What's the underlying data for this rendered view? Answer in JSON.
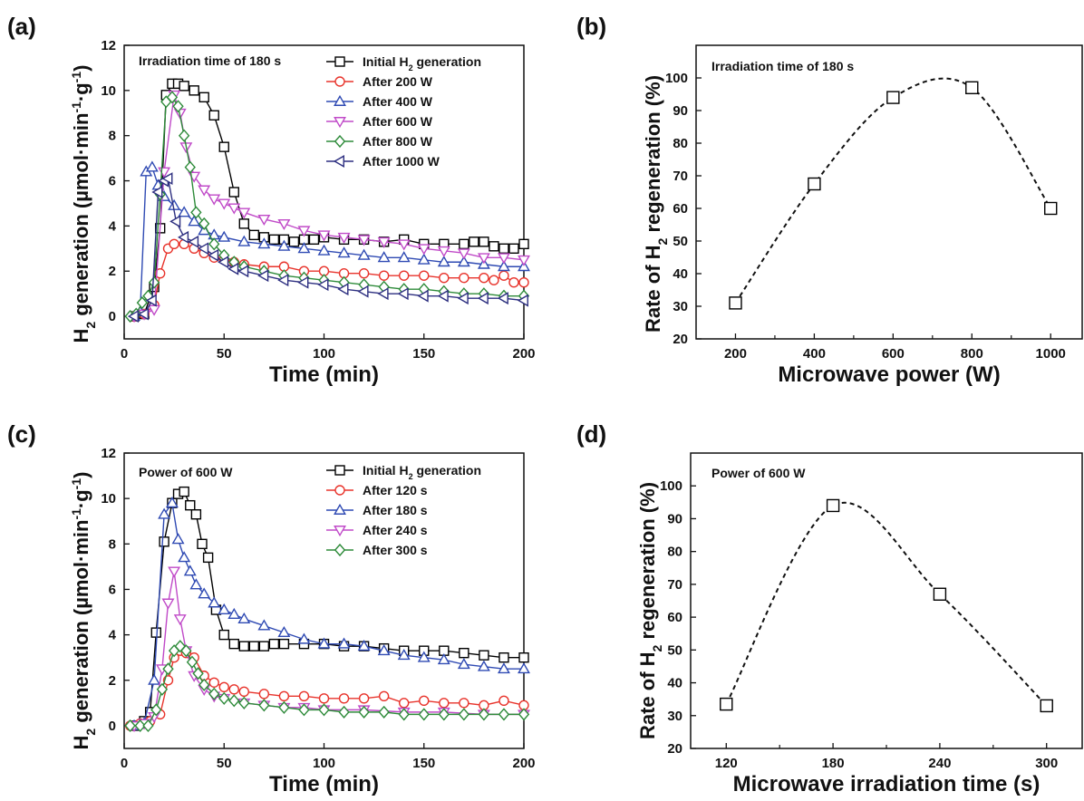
{
  "chart_data": [
    {
      "panel": "(a)",
      "type": "line",
      "annotation": "Irradiation time of 180 s",
      "xlabel": "Time (min)",
      "ylabel": [
        "H",
        "2",
        " generation  (µmol·min",
        "-1",
        "·g",
        "-1",
        ")"
      ],
      "xlim": [
        0,
        200
      ],
      "ylim": [
        -1,
        12
      ],
      "xticks": [
        "0",
        "50",
        "100",
        "150",
        "200"
      ],
      "yticks": [
        "0",
        "2",
        "4",
        "6",
        "8",
        "10",
        "12"
      ],
      "legend_position": "top-right",
      "series": [
        {
          "name": [
            "Initial H",
            "2",
            " generation"
          ],
          "color": "#000000",
          "marker": "square",
          "x": [
            5,
            10,
            15,
            18,
            21,
            24,
            27,
            30,
            35,
            40,
            45,
            50,
            55,
            60,
            65,
            70,
            75,
            80,
            85,
            90,
            95,
            100,
            110,
            120,
            130,
            140,
            150,
            160,
            170,
            175,
            180,
            185,
            190,
            195,
            200
          ],
          "y": [
            0,
            0.1,
            1.3,
            3.9,
            9.8,
            10.3,
            10.3,
            10.2,
            10,
            9.7,
            8.9,
            7.5,
            5.5,
            4.1,
            3.6,
            3.5,
            3.4,
            3.4,
            3.3,
            3.4,
            3.4,
            3.5,
            3.4,
            3.4,
            3.3,
            3.4,
            3.2,
            3.2,
            3.2,
            3.3,
            3.3,
            3.1,
            3,
            3,
            3.2
          ]
        },
        {
          "name": [
            "After 200 W"
          ],
          "color": "#e8332b",
          "marker": "circle",
          "x": [
            5,
            10,
            15,
            18,
            22,
            25,
            30,
            35,
            40,
            45,
            50,
            55,
            60,
            70,
            80,
            90,
            100,
            110,
            120,
            130,
            140,
            150,
            160,
            170,
            180,
            185,
            190,
            195,
            200
          ],
          "y": [
            0,
            0.1,
            0.5,
            1.9,
            3.0,
            3.2,
            3.2,
            3.0,
            2.8,
            2.6,
            2.5,
            2.4,
            2.3,
            2.2,
            2.2,
            2.0,
            2.0,
            1.9,
            1.9,
            1.8,
            1.8,
            1.8,
            1.7,
            1.7,
            1.7,
            1.6,
            1.8,
            1.5,
            1.5
          ]
        },
        {
          "name": [
            "After 400 W"
          ],
          "color": "#2f4ab3",
          "marker": "triangle-up",
          "x": [
            5,
            8,
            11,
            14,
            17,
            20,
            25,
            30,
            35,
            40,
            45,
            50,
            60,
            70,
            80,
            90,
            100,
            110,
            120,
            130,
            140,
            150,
            160,
            170,
            180,
            190,
            200
          ],
          "y": [
            0,
            0.2,
            6.4,
            6.6,
            5.8,
            5.3,
            4.9,
            4.6,
            4.2,
            3.8,
            3.6,
            3.5,
            3.3,
            3.2,
            3.1,
            3.0,
            2.9,
            2.8,
            2.7,
            2.6,
            2.6,
            2.5,
            2.4,
            2.4,
            2.3,
            2.2,
            2.2
          ]
        },
        {
          "name": [
            "After 600 W"
          ],
          "color": "#c04ac8",
          "marker": "triangle-down",
          "x": [
            5,
            10,
            15,
            20,
            25,
            28,
            31,
            35,
            40,
            45,
            50,
            55,
            60,
            70,
            80,
            90,
            100,
            110,
            120,
            130,
            140,
            150,
            160,
            170,
            180,
            190,
            200
          ],
          "y": [
            0,
            0.1,
            0.3,
            6.4,
            9.8,
            9.0,
            7.5,
            6.2,
            5.6,
            5.2,
            5.0,
            4.8,
            4.6,
            4.3,
            4.1,
            3.8,
            3.6,
            3.5,
            3.4,
            3.3,
            3.2,
            3.0,
            2.9,
            2.8,
            2.6,
            2.6,
            2.5
          ]
        },
        {
          "name": [
            "After 800 W"
          ],
          "color": "#2e8b3a",
          "marker": "diamond",
          "x": [
            3,
            6,
            9,
            12,
            15,
            18,
            21,
            24,
            27,
            30,
            33,
            36,
            40,
            45,
            50,
            55,
            60,
            70,
            80,
            90,
            100,
            110,
            120,
            130,
            140,
            150,
            160,
            170,
            180,
            190,
            200
          ],
          "y": [
            0,
            0.1,
            0.6,
            0.9,
            1.5,
            5.4,
            9.5,
            9.7,
            9.3,
            8.0,
            6.6,
            4.6,
            4.1,
            3.2,
            2.7,
            2.4,
            2.2,
            2.0,
            1.8,
            1.7,
            1.6,
            1.5,
            1.4,
            1.3,
            1.2,
            1.2,
            1.1,
            1.0,
            1.0,
            0.9,
            0.9
          ]
        },
        {
          "name": [
            "After 1000 W"
          ],
          "color": "#2d2f80",
          "marker": "triangle-left",
          "x": [
            5,
            10,
            14,
            17,
            20,
            22,
            26,
            30,
            35,
            40,
            45,
            50,
            55,
            60,
            70,
            80,
            90,
            100,
            110,
            120,
            130,
            140,
            150,
            160,
            170,
            180,
            190,
            200
          ],
          "y": [
            0,
            0.1,
            0.7,
            5.5,
            6.0,
            6.1,
            4.2,
            3.5,
            3.3,
            3.0,
            2.7,
            2.4,
            2.1,
            2.0,
            1.8,
            1.6,
            1.5,
            1.4,
            1.2,
            1.1,
            1.0,
            1.0,
            0.9,
            0.9,
            0.8,
            0.8,
            0.8,
            0.7
          ]
        }
      ]
    },
    {
      "panel": "(b)",
      "type": "scatter",
      "annotation": "Irradiation time of 180 s",
      "xlabel": "Microwave power (W)",
      "ylabel": [
        "Rate of H",
        "2",
        " regeneration  (%)"
      ],
      "xlim": [
        100,
        1080
      ],
      "ylim": [
        20,
        110
      ],
      "xticks": [
        "200",
        "400",
        "600",
        "800",
        "1000"
      ],
      "yticks": [
        "20",
        "30",
        "40",
        "50",
        "60",
        "70",
        "80",
        "90",
        "100"
      ],
      "series": [
        {
          "color": "#000000",
          "marker": "square",
          "fit": "dashed-curve",
          "x": [
            200,
            400,
            600,
            800,
            1000
          ],
          "y": [
            31,
            67.5,
            94,
            97,
            60
          ]
        }
      ]
    },
    {
      "panel": "(c)",
      "type": "line",
      "annotation": "Power of 600 W",
      "xlabel": "Time (min)",
      "ylabel": [
        "H",
        "2",
        " generation  (µmol·min",
        "-1",
        "·g",
        "-1",
        ")"
      ],
      "xlim": [
        0,
        200
      ],
      "ylim": [
        -1,
        12
      ],
      "xticks": [
        "0",
        "50",
        "100",
        "150",
        "200"
      ],
      "yticks": [
        "0",
        "2",
        "4",
        "6",
        "8",
        "10",
        "12"
      ],
      "legend_position": "top-right",
      "series": [
        {
          "name": [
            "Initial H",
            "2",
            " generation"
          ],
          "color": "#000000",
          "marker": "square",
          "x": [
            5,
            10,
            13,
            16,
            20,
            24,
            27,
            30,
            33,
            36,
            39,
            42,
            46,
            50,
            55,
            60,
            65,
            70,
            75,
            80,
            90,
            100,
            110,
            120,
            130,
            140,
            150,
            160,
            170,
            180,
            190,
            200
          ],
          "y": [
            0,
            0.2,
            0.6,
            4.1,
            8.1,
            9.8,
            10.2,
            10.3,
            9.7,
            9.3,
            8.0,
            7.4,
            5.1,
            4.0,
            3.6,
            3.5,
            3.5,
            3.5,
            3.6,
            3.6,
            3.6,
            3.6,
            3.5,
            3.5,
            3.4,
            3.3,
            3.3,
            3.3,
            3.2,
            3.1,
            3.0,
            3.0
          ]
        },
        {
          "name": [
            "After 120 s"
          ],
          "color": "#e8332b",
          "marker": "circle",
          "x": [
            3,
            8,
            13,
            18,
            22,
            25,
            28,
            31,
            35,
            40,
            45,
            50,
            55,
            60,
            70,
            80,
            90,
            100,
            110,
            120,
            130,
            140,
            150,
            160,
            170,
            180,
            190,
            200
          ],
          "y": [
            0,
            0.1,
            0.2,
            0.5,
            2.0,
            3.0,
            3.3,
            3.2,
            3.0,
            2.2,
            1.9,
            1.7,
            1.6,
            1.5,
            1.4,
            1.3,
            1.3,
            1.2,
            1.2,
            1.2,
            1.3,
            1.0,
            1.1,
            1.0,
            1.0,
            0.9,
            1.1,
            0.9
          ]
        },
        {
          "name": [
            "After 180 s"
          ],
          "color": "#2f4ab3",
          "marker": "triangle-up",
          "x": [
            5,
            10,
            15,
            20,
            24,
            27,
            30,
            33,
            36,
            40,
            45,
            50,
            55,
            60,
            70,
            80,
            90,
            100,
            110,
            120,
            130,
            140,
            150,
            160,
            170,
            180,
            190,
            200
          ],
          "y": [
            0,
            0.1,
            2.0,
            9.3,
            9.8,
            8.2,
            7.4,
            6.8,
            6.2,
            5.8,
            5.4,
            5.1,
            4.9,
            4.7,
            4.4,
            4.1,
            3.8,
            3.6,
            3.6,
            3.5,
            3.3,
            3.1,
            3.0,
            2.9,
            2.7,
            2.6,
            2.5,
            2.5
          ]
        },
        {
          "name": [
            "After 240 s"
          ],
          "color": "#c04ac8",
          "marker": "triangle-down",
          "x": [
            5,
            10,
            15,
            19,
            22,
            25,
            28,
            31,
            35,
            40,
            45,
            50,
            60,
            70,
            80,
            90,
            100,
            120,
            140,
            160,
            180,
            200
          ],
          "y": [
            0,
            0.1,
            0.4,
            2.5,
            5.4,
            6.8,
            4.7,
            3.3,
            2.2,
            1.6,
            1.3,
            1.2,
            1.0,
            0.9,
            0.8,
            0.8,
            0.7,
            0.7,
            0.6,
            0.6,
            0.5,
            0.5
          ]
        },
        {
          "name": [
            "After 300 s"
          ],
          "color": "#2e8b3a",
          "marker": "diamond",
          "x": [
            3,
            8,
            12,
            16,
            19,
            22,
            25,
            28,
            31,
            34,
            37,
            40,
            45,
            50,
            55,
            60,
            70,
            80,
            90,
            100,
            110,
            120,
            130,
            140,
            150,
            160,
            170,
            180,
            190,
            200
          ],
          "y": [
            0,
            0,
            0,
            0.7,
            1.6,
            2.5,
            3.3,
            3.5,
            3.3,
            2.8,
            2.3,
            1.8,
            1.4,
            1.2,
            1.1,
            1.0,
            0.9,
            0.8,
            0.7,
            0.7,
            0.6,
            0.6,
            0.6,
            0.5,
            0.5,
            0.5,
            0.5,
            0.5,
            0.5,
            0.5
          ]
        }
      ]
    },
    {
      "panel": "(d)",
      "type": "scatter",
      "annotation": "Power of 600 W",
      "xlabel": "Microwave irradiation time (s)",
      "ylabel": [
        "Rate of H",
        "2",
        " regeneration  (%)"
      ],
      "xlim": [
        100,
        320
      ],
      "ylim": [
        20,
        110
      ],
      "xticks": [
        "120",
        "180",
        "240",
        "300"
      ],
      "yticks": [
        "20",
        "30",
        "40",
        "50",
        "60",
        "70",
        "80",
        "90",
        "100"
      ],
      "series": [
        {
          "color": "#000000",
          "marker": "square",
          "fit": "dashed-curve",
          "x": [
            120,
            180,
            240,
            300
          ],
          "y": [
            33.5,
            94,
            67,
            33
          ]
        }
      ]
    }
  ]
}
